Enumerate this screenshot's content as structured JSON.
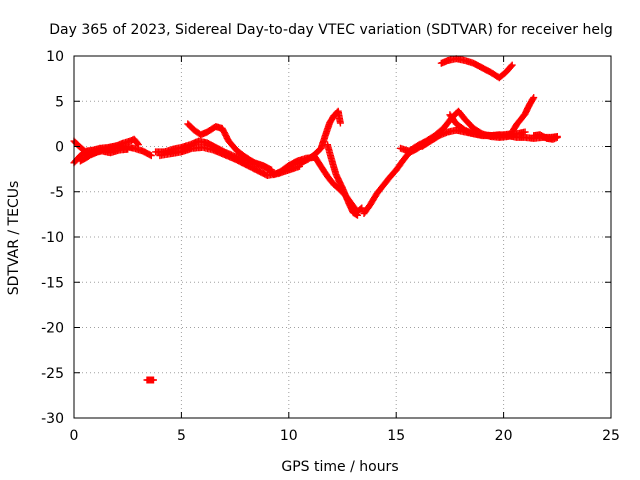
{
  "chart_data": {
    "type": "scatter",
    "title": "Day 365 of 2023, Sidereal Day-to-day VTEC variation (SDTVAR) for receiver helg",
    "xlabel": "GPS time / hours",
    "ylabel": "SDTVAR / TECUs",
    "xlim": [
      0,
      25
    ],
    "ylim": [
      -30,
      10
    ],
    "xticks": [
      0,
      5,
      10,
      15,
      20,
      25
    ],
    "yticks": [
      -30,
      -25,
      -20,
      -15,
      -10,
      -5,
      0,
      5,
      10
    ],
    "xtick_labels": [
      "0",
      "5",
      "10",
      "15",
      "20",
      "25"
    ],
    "ytick_labels": [
      "-30",
      "-25",
      "-20",
      "-15",
      "-10",
      "-5",
      "0",
      "5",
      "10"
    ],
    "grid": true,
    "marker": "+",
    "color": "#ff0000",
    "series": [
      {
        "name": "SDTVAR",
        "tracks": [
          [
            [
              0.0,
              -1.8
            ],
            [
              0.3,
              -1.0
            ],
            [
              0.6,
              -0.5
            ],
            [
              0.9,
              -0.4
            ],
            [
              1.2,
              -0.2
            ],
            [
              1.6,
              -0.1
            ],
            [
              2.0,
              0.1
            ],
            [
              2.4,
              0.0
            ],
            [
              2.8,
              -0.2
            ],
            [
              3.2,
              -0.5
            ],
            [
              3.6,
              -1.0
            ]
          ],
          [
            [
              0.0,
              0.6
            ],
            [
              0.2,
              0.1
            ],
            [
              0.5,
              -0.5
            ],
            [
              0.8,
              -0.9
            ],
            [
              1.1,
              -0.6
            ],
            [
              1.4,
              -0.3
            ],
            [
              1.8,
              -0.1
            ],
            [
              2.2,
              0.3
            ],
            [
              2.6,
              0.6
            ],
            [
              2.8,
              0.8
            ],
            [
              3.0,
              0.2
            ]
          ],
          [
            [
              0.3,
              -1.6
            ],
            [
              0.6,
              -1.2
            ],
            [
              0.9,
              -0.7
            ],
            [
              1.3,
              -0.5
            ],
            [
              1.7,
              -0.7
            ],
            [
              2.1,
              -0.4
            ],
            [
              2.5,
              -0.3
            ]
          ],
          [
            [
              3.8,
              -0.6
            ],
            [
              4.2,
              -0.6
            ],
            [
              4.6,
              -0.3
            ],
            [
              5.0,
              -0.1
            ],
            [
              5.4,
              0.2
            ],
            [
              5.8,
              0.6
            ],
            [
              6.2,
              0.4
            ],
            [
              6.6,
              -0.1
            ],
            [
              7.0,
              -0.6
            ],
            [
              7.4,
              -1.0
            ],
            [
              7.8,
              -1.4
            ],
            [
              8.2,
              -1.6
            ],
            [
              8.6,
              -2.0
            ],
            [
              9.0,
              -2.4
            ],
            [
              9.3,
              -3.1
            ],
            [
              9.6,
              -2.8
            ],
            [
              10.0,
              -2.1
            ],
            [
              10.4,
              -1.6
            ],
            [
              10.8,
              -1.3
            ],
            [
              11.2,
              -1.2
            ]
          ],
          [
            [
              4.0,
              -1.0
            ],
            [
              4.5,
              -0.8
            ],
            [
              5.0,
              -0.6
            ],
            [
              5.5,
              -0.2
            ],
            [
              6.0,
              -0.1
            ],
            [
              6.5,
              -0.4
            ],
            [
              7.0,
              -0.9
            ],
            [
              7.5,
              -1.4
            ],
            [
              8.0,
              -2.0
            ],
            [
              8.5,
              -2.6
            ],
            [
              9.0,
              -3.2
            ],
            [
              9.5,
              -3.0
            ],
            [
              10.0,
              -2.6
            ],
            [
              10.5,
              -2.2
            ]
          ],
          [
            [
              5.3,
              2.5
            ],
            [
              5.6,
              1.8
            ],
            [
              5.9,
              1.3
            ],
            [
              6.2,
              1.6
            ],
            [
              6.6,
              2.2
            ],
            [
              6.9,
              2.0
            ],
            [
              7.2,
              0.6
            ],
            [
              7.6,
              -0.5
            ],
            [
              8.0,
              -1.2
            ],
            [
              8.4,
              -1.8
            ],
            [
              8.8,
              -2.1
            ],
            [
              9.2,
              -2.6
            ]
          ],
          [
            [
              10.5,
              -1.9
            ],
            [
              10.9,
              -1.4
            ],
            [
              11.2,
              -0.9
            ],
            [
              11.5,
              -0.2
            ],
            [
              11.7,
              1.2
            ],
            [
              11.9,
              2.6
            ],
            [
              12.1,
              3.4
            ],
            [
              12.3,
              3.9
            ],
            [
              12.4,
              2.6
            ]
          ],
          [
            [
              11.2,
              -1.1
            ],
            [
              11.5,
              -2.2
            ],
            [
              11.8,
              -3.3
            ],
            [
              12.1,
              -4.2
            ],
            [
              12.4,
              -4.8
            ],
            [
              12.7,
              -5.6
            ],
            [
              13.0,
              -6.6
            ],
            [
              13.2,
              -7.2
            ],
            [
              13.4,
              -6.8
            ]
          ],
          [
            [
              11.8,
              0.2
            ],
            [
              12.0,
              -1.5
            ],
            [
              12.2,
              -3.1
            ],
            [
              12.5,
              -4.6
            ],
            [
              12.8,
              -6.3
            ],
            [
              13.0,
              -7.3
            ],
            [
              13.2,
              -7.6
            ]
          ],
          [
            [
              13.5,
              -7.4
            ],
            [
              13.8,
              -6.4
            ],
            [
              14.1,
              -5.2
            ],
            [
              14.4,
              -4.3
            ],
            [
              14.7,
              -3.4
            ],
            [
              15.0,
              -2.6
            ],
            [
              15.3,
              -1.6
            ],
            [
              15.6,
              -0.7
            ],
            [
              16.0,
              -0.2
            ],
            [
              16.3,
              0.3
            ]
          ],
          [
            [
              15.2,
              -0.2
            ],
            [
              15.6,
              -0.5
            ],
            [
              16.0,
              0.1
            ],
            [
              16.4,
              0.6
            ],
            [
              16.8,
              1.2
            ],
            [
              17.2,
              2.0
            ],
            [
              17.6,
              3.2
            ],
            [
              17.9,
              3.9
            ],
            [
              18.2,
              3.0
            ],
            [
              18.6,
              2.0
            ],
            [
              19.0,
              1.4
            ],
            [
              19.4,
              1.1
            ],
            [
              19.8,
              1.0
            ],
            [
              20.2,
              1.1
            ],
            [
              20.6,
              1.4
            ],
            [
              21.0,
              1.6
            ]
          ],
          [
            [
              16.2,
              0.0
            ],
            [
              16.6,
              0.6
            ],
            [
              17.0,
              1.2
            ],
            [
              17.4,
              1.6
            ],
            [
              17.8,
              1.8
            ],
            [
              18.2,
              1.6
            ],
            [
              18.6,
              1.4
            ],
            [
              19.0,
              1.2
            ],
            [
              19.4,
              1.2
            ],
            [
              19.8,
              1.3
            ],
            [
              20.2,
              1.2
            ],
            [
              20.6,
              1.0
            ],
            [
              21.0,
              1.0
            ],
            [
              21.4,
              0.9
            ],
            [
              21.8,
              1.0
            ],
            [
              22.2,
              1.0
            ],
            [
              22.5,
              1.1
            ]
          ],
          [
            [
              17.5,
              3.5
            ],
            [
              17.8,
              2.5
            ],
            [
              18.2,
              1.8
            ],
            [
              18.6,
              1.4
            ],
            [
              19.0,
              1.3
            ],
            [
              19.5,
              1.2
            ],
            [
              20.0,
              1.3
            ],
            [
              20.4,
              1.4
            ]
          ],
          [
            [
              20.4,
              1.6
            ],
            [
              20.6,
              2.4
            ],
            [
              20.8,
              3.0
            ],
            [
              21.0,
              3.6
            ],
            [
              21.2,
              4.6
            ],
            [
              21.4,
              5.4
            ]
          ],
          [
            [
              21.4,
              1.2
            ],
            [
              21.7,
              1.3
            ],
            [
              22.0,
              0.9
            ],
            [
              22.3,
              0.8
            ],
            [
              22.5,
              1.0
            ]
          ],
          [
            [
              17.1,
              9.2
            ],
            [
              17.4,
              9.5
            ],
            [
              17.8,
              9.7
            ],
            [
              18.2,
              9.5
            ],
            [
              18.6,
              9.2
            ],
            [
              19.0,
              8.7
            ],
            [
              19.4,
              8.2
            ],
            [
              19.8,
              7.6
            ],
            [
              20.1,
              8.2
            ],
            [
              20.4,
              9.0
            ]
          ],
          [
            [
              3.4,
              -25.8
            ],
            [
              3.5,
              -25.8
            ],
            [
              3.6,
              -25.8
            ],
            [
              3.7,
              -25.8
            ]
          ]
        ]
      }
    ]
  }
}
